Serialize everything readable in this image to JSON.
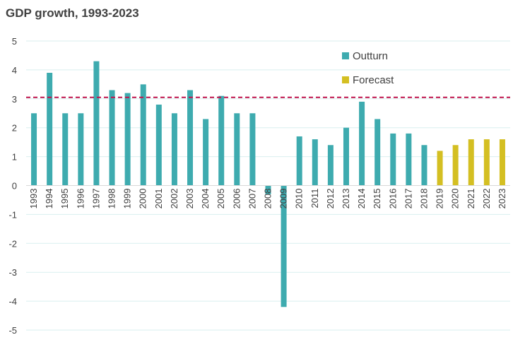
{
  "chart_data": {
    "type": "bar",
    "title": "GDP growth, 1993-2023",
    "xlabel": "",
    "ylabel": "",
    "ylim": [
      -5,
      5
    ],
    "yticks": [
      5,
      4,
      3,
      2,
      1,
      0,
      -1,
      -2,
      -3,
      -4,
      -5
    ],
    "grid": true,
    "legend_position": "top-right",
    "reference_line": {
      "value": 3.05,
      "style": "dashed",
      "color": "#C0144C"
    },
    "categories": [
      "1993",
      "1994",
      "1995",
      "1996",
      "1997",
      "1998",
      "1999",
      "2000",
      "2001",
      "2002",
      "2003",
      "2004",
      "2005",
      "2006",
      "2007",
      "2008",
      "2009",
      "2010",
      "2011",
      "2012",
      "2013",
      "2014",
      "2015",
      "2016",
      "2017",
      "2018",
      "2019",
      "2020",
      "2021",
      "2022",
      "2023"
    ],
    "series": [
      {
        "name": "Outturn",
        "color": "#3EABAF",
        "values": [
          2.5,
          3.9,
          2.5,
          2.5,
          4.3,
          3.3,
          3.2,
          3.5,
          2.8,
          2.5,
          3.3,
          2.3,
          3.1,
          2.5,
          2.5,
          -0.3,
          -4.2,
          1.7,
          1.6,
          1.4,
          2.0,
          2.9,
          2.3,
          1.8,
          1.8,
          1.4,
          null,
          null,
          null,
          null,
          null
        ]
      },
      {
        "name": "Forecast",
        "color": "#D4BF22",
        "values": [
          null,
          null,
          null,
          null,
          null,
          null,
          null,
          null,
          null,
          null,
          null,
          null,
          null,
          null,
          null,
          null,
          null,
          null,
          null,
          null,
          null,
          null,
          null,
          null,
          null,
          null,
          1.2,
          1.4,
          1.6,
          1.6,
          1.6
        ]
      }
    ]
  }
}
